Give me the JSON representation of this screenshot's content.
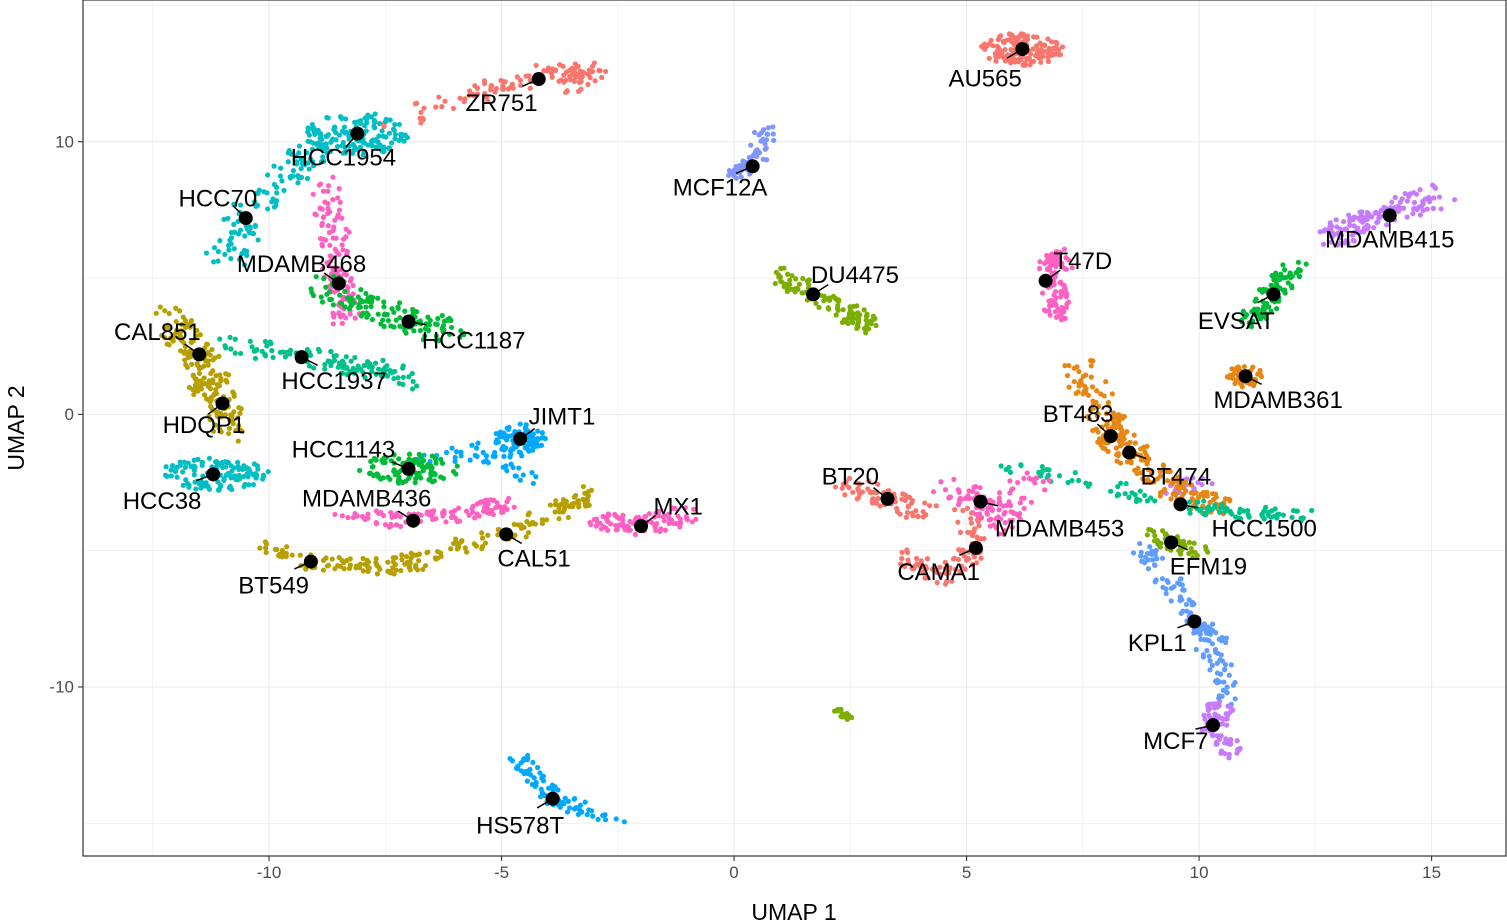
{
  "chart_data": {
    "type": "scatter",
    "xlabel": "UMAP 1",
    "ylabel": "UMAP 2",
    "xlim": [
      -14,
      16.6
    ],
    "ylim": [
      -16.2,
      15.2
    ],
    "x_ticks": [
      -10,
      -5,
      0,
      5,
      10,
      15
    ],
    "y_ticks": [
      -10,
      0,
      10
    ],
    "grid": true,
    "legend": "none",
    "cell_lines": [
      {
        "name": "AU565",
        "x": 6.2,
        "y": 13.4,
        "label_x": 5.4,
        "label_y": 12.3,
        "color": "#f8766d",
        "shape": "blob",
        "rx": 0.9,
        "ry": 0.6,
        "n": 150
      },
      {
        "name": "ZR751",
        "x": -4.2,
        "y": 12.3,
        "label_x": -5.0,
        "label_y": 11.4,
        "color": "#f8766d",
        "shape": "path",
        "path": [
          [
            -7.6,
            10.5
          ],
          [
            -5.5,
            11.8
          ],
          [
            -4.0,
            12.5
          ],
          [
            -3.0,
            12.6
          ],
          [
            -3.5,
            12.0
          ]
        ],
        "w": 0.4,
        "n": 120
      },
      {
        "name": "HCC1954",
        "x": -8.1,
        "y": 10.3,
        "label_x": -8.4,
        "label_y": 9.4,
        "color": "#00bfc4",
        "shape": "blob",
        "rx": 1.1,
        "ry": 0.8,
        "n": 130
      },
      {
        "name": "MCF12A",
        "x": 0.4,
        "y": 9.1,
        "label_x": -0.3,
        "label_y": 8.3,
        "color": "#7f96ff",
        "shape": "path",
        "path": [
          [
            0.0,
            8.8
          ],
          [
            0.5,
            9.3
          ],
          [
            0.7,
            10.5
          ]
        ],
        "w": 0.25,
        "n": 60
      },
      {
        "name": "HCC70",
        "x": -10.5,
        "y": 7.2,
        "label_x": -11.1,
        "label_y": 7.9,
        "color": "#00bfc4",
        "shape": "path",
        "path": [
          [
            -11.0,
            5.5
          ],
          [
            -10.5,
            7.2
          ],
          [
            -9.5,
            9.0
          ],
          [
            -9.0,
            9.7
          ]
        ],
        "w": 0.5,
        "n": 110
      },
      {
        "name": "MDAMB468",
        "x": -8.5,
        "y": 4.8,
        "label_x": -9.3,
        "label_y": 5.5,
        "color": "#ff61c3",
        "shape": "path",
        "path": [
          [
            -8.8,
            8.5
          ],
          [
            -8.6,
            6.5
          ],
          [
            -8.5,
            4.8
          ],
          [
            -8.3,
            3.3
          ]
        ],
        "w": 0.35,
        "n": 120
      },
      {
        "name": "DU4475",
        "x": 1.7,
        "y": 4.4,
        "label_x": 2.6,
        "label_y": 5.1,
        "color": "#7cae00",
        "shape": "path",
        "path": [
          [
            0.9,
            5.2
          ],
          [
            1.7,
            4.4
          ],
          [
            2.5,
            3.7
          ],
          [
            2.8,
            3.3
          ]
        ],
        "w": 0.35,
        "n": 110
      },
      {
        "name": "T47D",
        "x": 6.7,
        "y": 4.9,
        "label_x": 7.5,
        "label_y": 5.6,
        "color": "#ff61c3",
        "shape": "path",
        "path": [
          [
            6.6,
            5.3
          ],
          [
            7.0,
            5.8
          ],
          [
            6.9,
            4.2
          ],
          [
            6.9,
            3.5
          ]
        ],
        "w": 0.3,
        "n": 100
      },
      {
        "name": "MDAMB415",
        "x": 14.1,
        "y": 7.3,
        "label_x": 14.1,
        "label_y": 6.4,
        "color": "#c77cff",
        "shape": "path",
        "path": [
          [
            12.8,
            6.5
          ],
          [
            13.8,
            7.3
          ],
          [
            15.2,
            8.0
          ]
        ],
        "w": 0.45,
        "n": 140
      },
      {
        "name": "HCC1187",
        "x": -7.0,
        "y": 3.4,
        "label_x": -5.6,
        "label_y": 2.7,
        "color": "#00ba38",
        "shape": "path",
        "path": [
          [
            -9.0,
            4.8
          ],
          [
            -8.0,
            4.0
          ],
          [
            -7.0,
            3.4
          ],
          [
            -6.0,
            3.0
          ]
        ],
        "w": 0.5,
        "n": 130
      },
      {
        "name": "EVSAT",
        "x": 11.6,
        "y": 4.4,
        "label_x": 10.8,
        "label_y": 3.4,
        "color": "#00ba38",
        "shape": "path",
        "path": [
          [
            12.0,
            5.5
          ],
          [
            11.6,
            4.4
          ],
          [
            11.1,
            3.3
          ]
        ],
        "w": 0.35,
        "n": 90
      },
      {
        "name": "CAL851",
        "x": -11.5,
        "y": 2.2,
        "label_x": -12.4,
        "label_y": 3.0,
        "color": "#b79f00",
        "shape": "path",
        "path": [
          [
            -12.3,
            3.7
          ],
          [
            -11.5,
            2.2
          ],
          [
            -11.2,
            1.0
          ]
        ],
        "w": 0.45,
        "n": 100
      },
      {
        "name": "HCC1937",
        "x": -9.3,
        "y": 2.1,
        "label_x": -8.6,
        "label_y": 1.2,
        "color": "#00c08b",
        "shape": "path",
        "path": [
          [
            -11.0,
            2.7
          ],
          [
            -9.3,
            2.1
          ],
          [
            -7.8,
            1.7
          ],
          [
            -7.0,
            1.3
          ]
        ],
        "w": 0.4,
        "n": 120
      },
      {
        "name": "MDAMB361",
        "x": 11.0,
        "y": 1.4,
        "label_x": 11.7,
        "label_y": 0.5,
        "color": "#e68613",
        "shape": "blob",
        "rx": 0.4,
        "ry": 0.4,
        "n": 45
      },
      {
        "name": "HDQP1",
        "x": -11.0,
        "y": 0.4,
        "label_x": -11.4,
        "label_y": -0.4,
        "color": "#b79f00",
        "shape": "path",
        "path": [
          [
            -11.5,
            1.3
          ],
          [
            -11.0,
            0.4
          ],
          [
            -10.8,
            -0.8
          ]
        ],
        "w": 0.4,
        "n": 70
      },
      {
        "name": "BT483",
        "x": 8.1,
        "y": -0.8,
        "label_x": 7.4,
        "label_y": 0.0,
        "color": "#e68613",
        "shape": "path",
        "path": [
          [
            7.3,
            1.8
          ],
          [
            7.9,
            0.2
          ],
          [
            8.1,
            -0.8
          ],
          [
            8.6,
            -1.5
          ]
        ],
        "w": 0.45,
        "n": 130
      },
      {
        "name": "JIMT1",
        "x": -4.6,
        "y": -0.9,
        "label_x": -3.7,
        "label_y": -0.1,
        "color": "#00a9ff",
        "shape": "blob",
        "rx": 0.55,
        "ry": 0.55,
        "n": 90
      },
      {
        "name": "HCC1143",
        "x": -7.0,
        "y": -2.0,
        "label_x": -8.4,
        "label_y": -1.3,
        "color": "#00ba38",
        "shape": "blob",
        "rx": 1.1,
        "ry": 0.55,
        "n": 100
      },
      {
        "name": "HCC38",
        "x": -11.2,
        "y": -2.2,
        "label_x": -12.3,
        "label_y": -3.2,
        "color": "#00bfc4",
        "shape": "blob",
        "rx": 1.2,
        "ry": 0.6,
        "n": 120
      },
      {
        "name": "BT474",
        "x": 8.5,
        "y": -1.4,
        "label_x": 9.5,
        "label_y": -2.3,
        "color": "#e68613",
        "shape": "path",
        "path": [
          [
            8.5,
            -1.4
          ],
          [
            9.4,
            -2.7
          ],
          [
            10.4,
            -3.4
          ]
        ],
        "w": 0.4,
        "n": 110
      },
      {
        "name": "BT20",
        "x": 3.3,
        "y": -3.1,
        "label_x": 2.5,
        "label_y": -2.3,
        "color": "#f8766d",
        "shape": "path",
        "path": [
          [
            2.5,
            -2.6
          ],
          [
            3.3,
            -3.1
          ],
          [
            4.1,
            -3.6
          ]
        ],
        "w": 0.4,
        "n": 70
      },
      {
        "name": "MDAMB436",
        "x": -6.9,
        "y": -3.9,
        "label_x": -7.9,
        "label_y": -3.1,
        "color": "#ff61c3",
        "shape": "path",
        "path": [
          [
            -8.5,
            -3.7
          ],
          [
            -6.9,
            -3.9
          ],
          [
            -5.5,
            -3.5
          ],
          [
            -5.0,
            -3.3
          ]
        ],
        "w": 0.35,
        "n": 110
      },
      {
        "name": "MX1",
        "x": -2.0,
        "y": -4.1,
        "label_x": -1.2,
        "label_y": -3.4,
        "color": "#ff61c3",
        "shape": "path",
        "path": [
          [
            -3.0,
            -3.9
          ],
          [
            -2.0,
            -4.1
          ],
          [
            -1.0,
            -3.7
          ]
        ],
        "w": 0.4,
        "n": 90
      },
      {
        "name": "MDAMB453",
        "x": 5.3,
        "y": -3.2,
        "label_x": 7.0,
        "label_y": -4.2,
        "color": "#ff61c3",
        "shape": "path",
        "path": [
          [
            4.6,
            -2.6
          ],
          [
            5.3,
            -3.2
          ],
          [
            5.8,
            -4.0
          ],
          [
            6.4,
            -2.2
          ]
        ],
        "w": 0.45,
        "n": 110
      },
      {
        "name": "HCC1500",
        "x": 9.6,
        "y": -3.3,
        "label_x": 11.4,
        "label_y": -4.2,
        "color": "#00c08b",
        "shape": "path",
        "path": [
          [
            9.6,
            -3.3
          ],
          [
            11.0,
            -3.7
          ],
          [
            12.3,
            -3.7
          ]
        ],
        "w": 0.3,
        "n": 60
      },
      {
        "name": "CAL51",
        "x": -4.9,
        "y": -4.4,
        "label_x": -4.3,
        "label_y": -5.3,
        "color": "#b79f00",
        "shape": "path",
        "path": [
          [
            -6.0,
            -4.8
          ],
          [
            -4.9,
            -4.4
          ],
          [
            -3.8,
            -3.6
          ],
          [
            -3.0,
            -2.8
          ]
        ],
        "w": 0.35,
        "n": 90
      },
      {
        "name": "EFM19",
        "x": 9.4,
        "y": -4.7,
        "label_x": 10.2,
        "label_y": -5.6,
        "color": "#7cae00",
        "shape": "path",
        "path": [
          [
            9.0,
            -4.4
          ],
          [
            9.4,
            -4.7
          ],
          [
            10.0,
            -5.1
          ]
        ],
        "w": 0.3,
        "n": 50
      },
      {
        "name": "BT549",
        "x": -9.1,
        "y": -5.4,
        "label_x": -9.9,
        "label_y": -6.3,
        "color": "#b79f00",
        "shape": "path",
        "path": [
          [
            -10.0,
            -4.9
          ],
          [
            -9.1,
            -5.4
          ],
          [
            -7.5,
            -5.6
          ],
          [
            -6.5,
            -5.3
          ]
        ],
        "w": 0.35,
        "n": 110
      },
      {
        "name": "CAMA1",
        "x": 5.2,
        "y": -4.9,
        "label_x": 4.4,
        "label_y": -5.8,
        "color": "#f8766d",
        "shape": "path",
        "path": [
          [
            3.7,
            -5.3
          ],
          [
            4.5,
            -6.0
          ],
          [
            5.2,
            -4.9
          ],
          [
            5.0,
            -3.6
          ]
        ],
        "w": 0.35,
        "n": 90
      },
      {
        "name": "KPL1",
        "x": 9.9,
        "y": -7.6,
        "label_x": 9.1,
        "label_y": -8.4,
        "color": "#619cff",
        "shape": "path",
        "path": [
          [
            8.8,
            -4.9
          ],
          [
            9.4,
            -6.3
          ],
          [
            9.9,
            -7.6
          ],
          [
            10.4,
            -8.4
          ]
        ],
        "w": 0.3,
        "n": 90
      },
      {
        "name": "MCF7",
        "x": 10.3,
        "y": -11.4,
        "label_x": 9.5,
        "label_y": -12.0,
        "color": "#c77cff",
        "shape": "path",
        "path": [
          [
            10.5,
            -10.5
          ],
          [
            10.3,
            -11.4
          ],
          [
            10.8,
            -12.5
          ]
        ],
        "w": 0.3,
        "n": 70
      },
      {
        "name": "HS578T",
        "x": -3.9,
        "y": -14.1,
        "label_x": -4.6,
        "label_y": -15.1,
        "color": "#00a9ff",
        "shape": "path",
        "path": [
          [
            -4.7,
            -12.5
          ],
          [
            -3.9,
            -14.1
          ],
          [
            -2.6,
            -14.8
          ]
        ],
        "w": 0.3,
        "n": 80
      }
    ],
    "unlabeled_points": [
      {
        "color": "#7cae00",
        "shape": "path",
        "path": [
          [
            2.2,
            -10.8
          ],
          [
            2.5,
            -11.2
          ]
        ],
        "w": 0.1,
        "n": 15
      },
      {
        "color": "#00a9ff",
        "shape": "path",
        "path": [
          [
            -6.8,
            -1.7
          ],
          [
            -5.3,
            -1.4
          ],
          [
            -4.3,
            -2.2
          ]
        ],
        "w": 0.4,
        "n": 45
      },
      {
        "color": "#00c08b",
        "shape": "path",
        "path": [
          [
            6.0,
            -2.0
          ],
          [
            8.0,
            -2.6
          ],
          [
            9.0,
            -3.2
          ]
        ],
        "w": 0.3,
        "n": 45
      },
      {
        "color": "#c77cff",
        "shape": "path",
        "path": [
          [
            9.2,
            -2.6
          ],
          [
            10.1,
            -2.6
          ]
        ],
        "w": 0.3,
        "n": 25
      },
      {
        "color": "#619cff",
        "shape": "path",
        "path": [
          [
            10.2,
            -8.5
          ],
          [
            10.5,
            -9.5
          ],
          [
            10.6,
            -10.5
          ]
        ],
        "w": 0.3,
        "n": 40
      }
    ]
  }
}
